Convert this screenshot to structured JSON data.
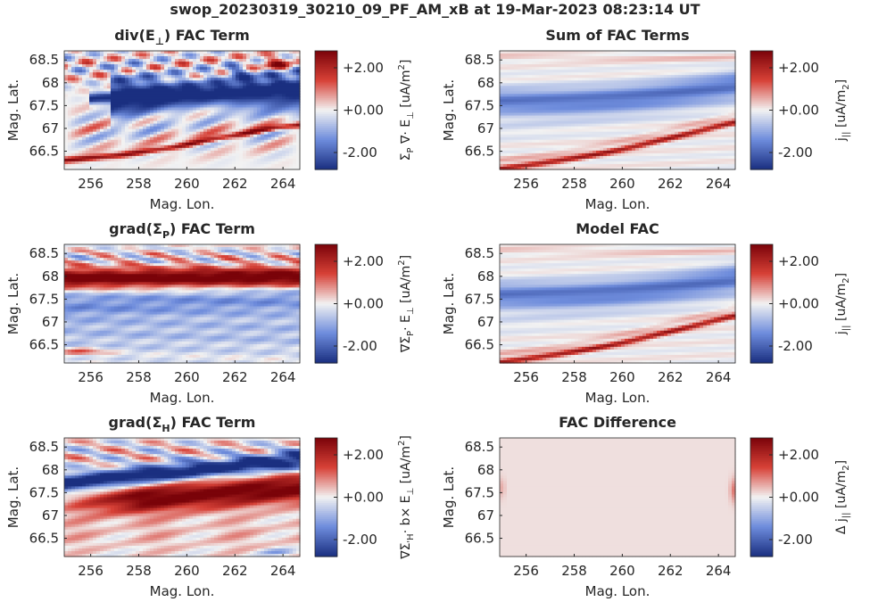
{
  "figure": {
    "suptitle": "swop_20230319_30210_09_PF_AM_xB at 19-Mar-2023 08:23:14 UT"
  },
  "colormap": {
    "low": "#1a2f80",
    "mid": "#f2f2f2",
    "high": "#7a0309"
  },
  "chart_data": [
    {
      "type": "heatmap",
      "title": "div(E⊥) FAC Term",
      "title_main": "div(E",
      "title_sub": "⊥",
      "title_tail": ") FAC Term",
      "xlabel": "Mag. Lon.",
      "ylabel": "Mag. Lat.",
      "x_ticks": [
        "256",
        "258",
        "260",
        "262",
        "264"
      ],
      "y_ticks": [
        "68.5",
        "68",
        "67.5",
        "67",
        "66.5"
      ],
      "xlim": [
        254.9,
        264.7
      ],
      "ylim": [
        66.1,
        68.7
      ],
      "clim": [
        -2.8,
        2.8
      ],
      "colorbar_ticks": [
        "+2.00",
        "+0.00",
        "-2.00"
      ],
      "colorbar_label": "ΣP ∇· E⊥ [uA/m2]",
      "colorbar_label_parts": [
        "Σ",
        "P",
        " ∇· E",
        "⊥",
        " [uA/m",
        "2",
        "]"
      ],
      "pattern": "divE"
    },
    {
      "type": "heatmap",
      "title": "Sum of FAC Terms",
      "title_main": "Sum of FAC Terms",
      "title_sub": "",
      "title_tail": "",
      "xlabel": "Mag. Lon.",
      "ylabel": "Mag. Lat.",
      "x_ticks": [
        "256",
        "258",
        "260",
        "262",
        "264"
      ],
      "y_ticks": [
        "68.5",
        "68",
        "67.5",
        "67",
        "66.5"
      ],
      "xlim": [
        254.9,
        264.7
      ],
      "ylim": [
        66.1,
        68.7
      ],
      "clim": [
        -2.8,
        2.8
      ],
      "colorbar_ticks": [
        "+2.00",
        "+0.00",
        "-2.00"
      ],
      "colorbar_label": "j|| [uA/m2]",
      "colorbar_label_parts": [
        "j",
        "||",
        " [uA/m",
        "2",
        "]"
      ],
      "pattern": "model"
    },
    {
      "type": "heatmap",
      "title": "grad(ΣP) FAC Term",
      "title_main": "grad(Σ",
      "title_sub": "P",
      "title_tail": ") FAC Term",
      "xlabel": "Mag. Lon.",
      "ylabel": "Mag. Lat.",
      "x_ticks": [
        "256",
        "258",
        "260",
        "262",
        "264"
      ],
      "y_ticks": [
        "68.5",
        "68",
        "67.5",
        "67",
        "66.5"
      ],
      "xlim": [
        254.9,
        264.7
      ],
      "ylim": [
        66.1,
        68.7
      ],
      "clim": [
        -2.8,
        2.8
      ],
      "colorbar_ticks": [
        "+2.00",
        "+0.00",
        "-2.00"
      ],
      "colorbar_label": "∇ΣP· E⊥ [uA/m2]",
      "colorbar_label_parts": [
        "∇Σ",
        "P",
        "· E",
        "⊥",
        " [uA/m",
        "2",
        "]"
      ],
      "pattern": "gradP"
    },
    {
      "type": "heatmap",
      "title": "Model FAC",
      "title_main": "Model FAC",
      "title_sub": "",
      "title_tail": "",
      "xlabel": "Mag. Lon.",
      "ylabel": "Mag. Lat.",
      "x_ticks": [
        "256",
        "258",
        "260",
        "262",
        "264"
      ],
      "y_ticks": [
        "68.5",
        "68",
        "67.5",
        "67",
        "66.5"
      ],
      "xlim": [
        254.9,
        264.7
      ],
      "ylim": [
        66.1,
        68.7
      ],
      "clim": [
        -2.8,
        2.8
      ],
      "colorbar_ticks": [
        "+2.00",
        "+0.00",
        "-2.00"
      ],
      "colorbar_label": "j|| [uA/m2]",
      "colorbar_label_parts": [
        "j",
        "||",
        " [uA/m",
        "2",
        "]"
      ],
      "pattern": "model"
    },
    {
      "type": "heatmap",
      "title": "grad(ΣH) FAC Term",
      "title_main": "grad(Σ",
      "title_sub": "H",
      "title_tail": ") FAC Term",
      "xlabel": "Mag. Lon.",
      "ylabel": "Mag. Lat.",
      "x_ticks": [
        "256",
        "258",
        "260",
        "262",
        "264"
      ],
      "y_ticks": [
        "68.5",
        "68",
        "67.5",
        "67",
        "66.5"
      ],
      "xlim": [
        254.9,
        264.7
      ],
      "ylim": [
        66.1,
        68.7
      ],
      "clim": [
        -2.8,
        2.8
      ],
      "colorbar_ticks": [
        "+2.00",
        "+0.00",
        "-2.00"
      ],
      "colorbar_label": "∇Σ'H· b× E⊥ [uA/m2]",
      "colorbar_label_parts": [
        "∇Σ",
        "'H",
        "· b× E",
        "⊥",
        " [uA/m",
        "2",
        "]"
      ],
      "pattern": "gradH"
    },
    {
      "type": "heatmap",
      "title": "FAC Difference",
      "title_main": "FAC Difference",
      "title_sub": "",
      "title_tail": "",
      "xlabel": "Mag. Lon.",
      "ylabel": "Mag. Lat.",
      "x_ticks": [
        "256",
        "258",
        "260",
        "262",
        "264"
      ],
      "y_ticks": [
        "68.5",
        "68",
        "67.5",
        "67",
        "66.5"
      ],
      "xlim": [
        254.9,
        264.7
      ],
      "ylim": [
        66.1,
        68.7
      ],
      "clim": [
        -2.8,
        2.8
      ],
      "colorbar_ticks": [
        "+2.00",
        "+0.00",
        "-2.00"
      ],
      "colorbar_label": "Δ j|| [uA/m2]",
      "colorbar_label_parts": [
        "Δ j",
        "||",
        " [uA/m",
        "2",
        "]"
      ],
      "pattern": "diff"
    }
  ]
}
